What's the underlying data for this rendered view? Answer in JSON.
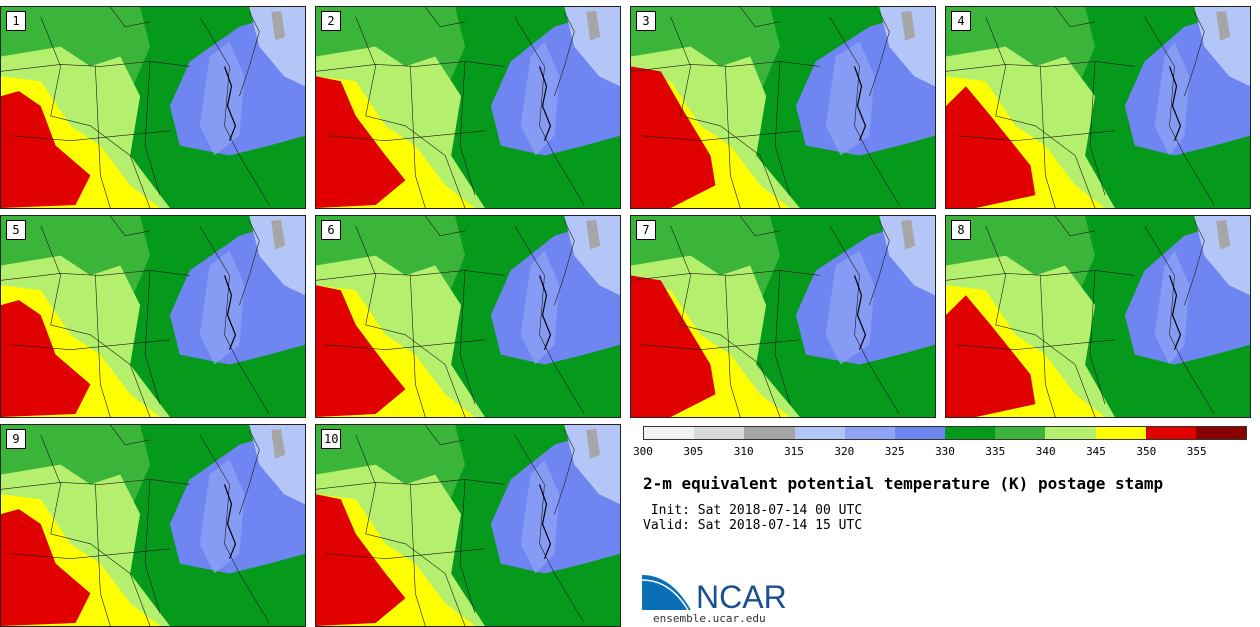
{
  "panels": [
    {
      "label": "1",
      "variant": 0
    },
    {
      "label": "2",
      "variant": 1
    },
    {
      "label": "3",
      "variant": 2
    },
    {
      "label": "4",
      "variant": 3
    },
    {
      "label": "5",
      "variant": 0
    },
    {
      "label": "6",
      "variant": 1
    },
    {
      "label": "7",
      "variant": 2
    },
    {
      "label": "8",
      "variant": 3
    },
    {
      "label": "9",
      "variant": 0
    },
    {
      "label": "10",
      "variant": 1
    }
  ],
  "colorbar": {
    "ticks": [
      "300",
      "305",
      "310",
      "315",
      "320",
      "325",
      "330",
      "335",
      "340",
      "345",
      "350",
      "355"
    ],
    "colors": [
      "#f2f2f2",
      "#d9d9d9",
      "#a6a6a6",
      "#b3c6f7",
      "#8fa4f5",
      "#6f86f2",
      "#059a1c",
      "#3ab53a",
      "#b4f06e",
      "#ffff00",
      "#e00000",
      "#8b0000"
    ]
  },
  "title": "2-m equivalent potential temperature (K) postage stamp",
  "init": " Init: Sat 2018-07-14 00 UTC",
  "valid": "Valid: Sat 2018-07-14 15 UTC",
  "logo_text": "NCAR",
  "website": "ensemble.ucar.edu"
}
